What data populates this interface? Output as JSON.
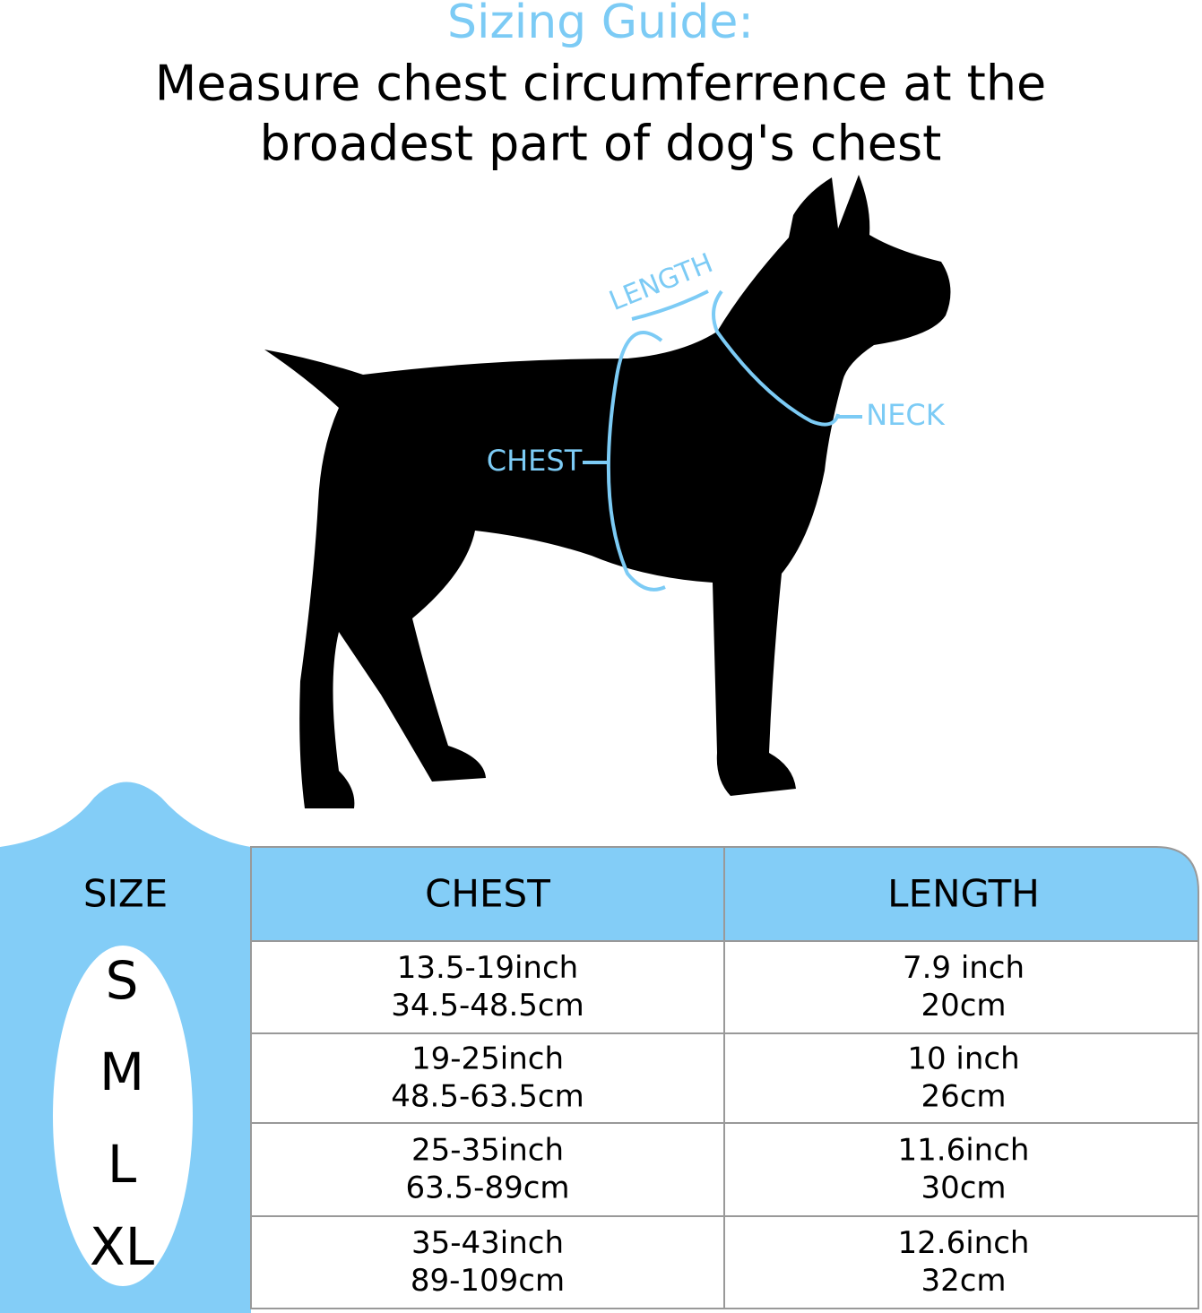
{
  "header": {
    "title": "Sizing Guide:",
    "subtitle": [
      "Measure chest circumferrence at the",
      "broadest part of dog's chest"
    ]
  },
  "diagram": {
    "labels": {
      "length": "LENGTH",
      "chest": "CHEST",
      "neck": "NECK"
    }
  },
  "table": {
    "columns": [
      "SIZE",
      "CHEST",
      "LENGTH"
    ],
    "rows": [
      {
        "size": "S",
        "chest": [
          "13.5-19inch",
          "34.5-48.5cm"
        ],
        "length": [
          "7.9 inch",
          "20cm"
        ]
      },
      {
        "size": "M",
        "chest": [
          "19-25inch",
          "48.5-63.5cm"
        ],
        "length": [
          "10 inch",
          "26cm"
        ]
      },
      {
        "size": "L",
        "chest": [
          "25-35inch",
          "63.5-89cm"
        ],
        "length": [
          "11.6inch",
          "30cm"
        ]
      },
      {
        "size": "XL",
        "chest": [
          "35-43inch",
          "89-109cm"
        ],
        "length": [
          "12.6inch",
          "32cm"
        ]
      }
    ]
  }
}
